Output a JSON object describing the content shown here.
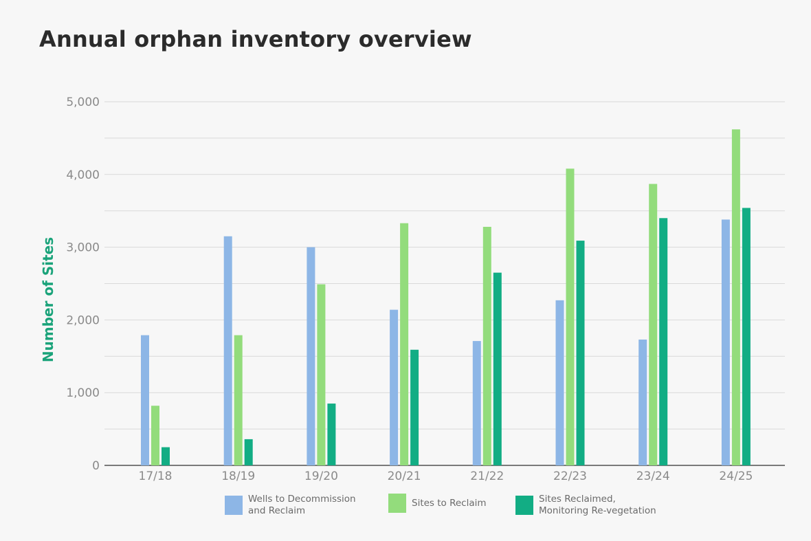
{
  "chart_data": {
    "type": "bar",
    "title": "Annual orphan inventory overview",
    "ylabel": "Number of Sites",
    "xlabel": "",
    "ylim": [
      0,
      5000
    ],
    "yticks": [
      0,
      1000,
      2000,
      3000,
      4000,
      5000
    ],
    "ytick_labels": [
      "0",
      "1,000",
      "2,000",
      "3,000",
      "4,000",
      "5,000"
    ],
    "grid": true,
    "legend_position": "bottom",
    "categories": [
      "17/18",
      "18/19",
      "19/20",
      "20/21",
      "21/22",
      "22/23",
      "23/24",
      "24/25"
    ],
    "series": [
      {
        "name": "Wells to Decommission\nand Reclaim",
        "color": "#8db6e6",
        "values": [
          1790,
          3150,
          3000,
          2140,
          1710,
          2270,
          1730,
          3380
        ]
      },
      {
        "name": "Sites to Reclaim",
        "color": "#93dc7c",
        "values": [
          820,
          1790,
          2490,
          3330,
          3280,
          4080,
          3870,
          4620
        ]
      },
      {
        "name": "Sites Reclaimed,\nMonitoring Re-vegetation",
        "color": "#12ad84",
        "values": [
          250,
          360,
          850,
          1590,
          2650,
          3090,
          3400,
          3540
        ]
      }
    ]
  }
}
